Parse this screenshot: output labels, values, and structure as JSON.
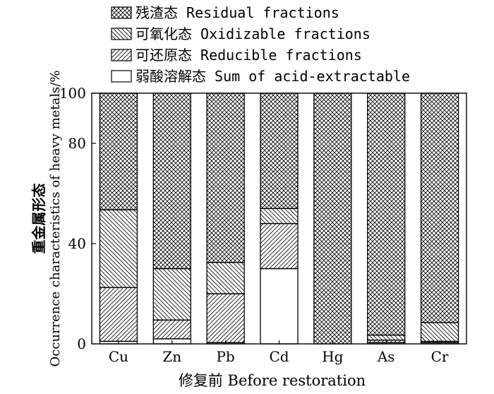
{
  "chart_data": {
    "type": "bar",
    "stacked": true,
    "categories": [
      "Cu",
      "Zn",
      "Pb",
      "Cd",
      "Hg",
      "As",
      "Cr"
    ],
    "series": [
      {
        "name": "弱酸溶解态 Sum of acid-extractable",
        "pattern": "none",
        "values": [
          1,
          2,
          0.5,
          30,
          0,
          0.5,
          0.5
        ]
      },
      {
        "name": "可还原态 Reducible fractions",
        "pattern": "diag-right",
        "values": [
          21.5,
          7.5,
          19.5,
          18,
          0,
          1,
          0.5
        ]
      },
      {
        "name": "可氧化态 Oxidizable fractions",
        "pattern": "diag-left",
        "values": [
          31,
          20.5,
          12.5,
          6,
          0,
          2,
          7.5
        ]
      },
      {
        "name": "残渣态 Residual fractions",
        "pattern": "crosshatch",
        "values": [
          46.5,
          70,
          67.5,
          46,
          100,
          96.5,
          91.5
        ]
      }
    ],
    "ylabel_cn": "重金属形态",
    "ylabel_en": "Occurrence characteristics of heavy metals/%",
    "xlabel": "修复前 Before restoration",
    "yticks": [
      0,
      40,
      80,
      100
    ],
    "ylim": [
      0,
      100
    ],
    "grid": false,
    "legend_position": "top"
  }
}
